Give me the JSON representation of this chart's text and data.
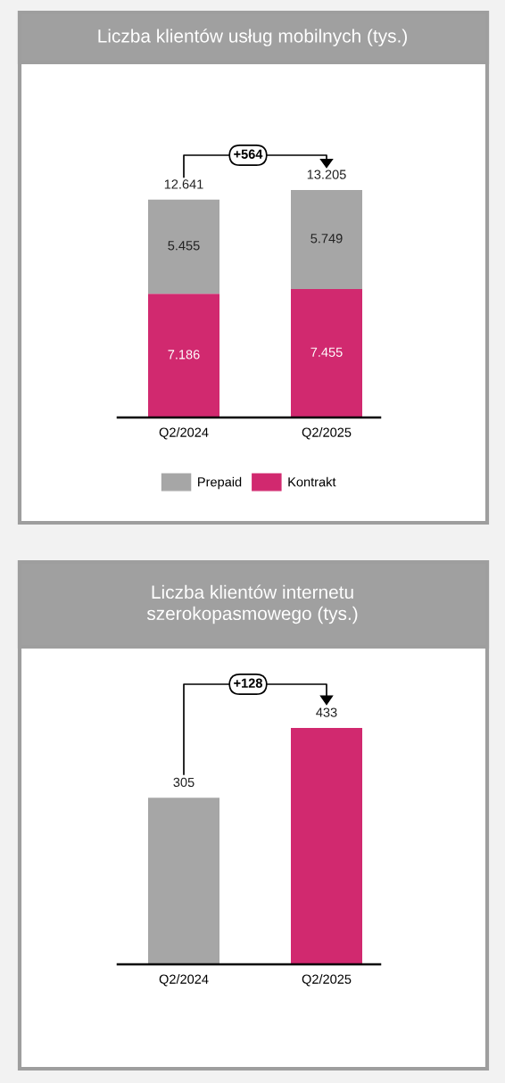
{
  "chart_data": [
    {
      "type": "bar",
      "title": "Liczba klientów usług mobilnych (tys.)",
      "categories": [
        "Q2/2024",
        "Q2/2025"
      ],
      "stacked": true,
      "series": [
        {
          "name": "Kontrakt",
          "color": "#d1296f",
          "values": [
            7186,
            7455
          ],
          "value_labels": [
            "7.186",
            "7.455"
          ]
        },
        {
          "name": "Prepaid",
          "color": "#a6a6a6",
          "values": [
            5455,
            5749
          ],
          "value_labels": [
            "5.455",
            "5.749"
          ]
        }
      ],
      "totals": [
        "12.641",
        "13.205"
      ],
      "annotations": [
        "+564"
      ],
      "legend": "bottom"
    },
    {
      "type": "bar",
      "title": "Liczba klientów internetu\nszerokopasmowego (tys.)",
      "categories": [
        "Q2/2024",
        "Q2/2025"
      ],
      "values": [
        305,
        433
      ],
      "colors": [
        "#a6a6a6",
        "#d1296f"
      ],
      "data_labels": true,
      "annotations": [
        "+128"
      ]
    }
  ]
}
